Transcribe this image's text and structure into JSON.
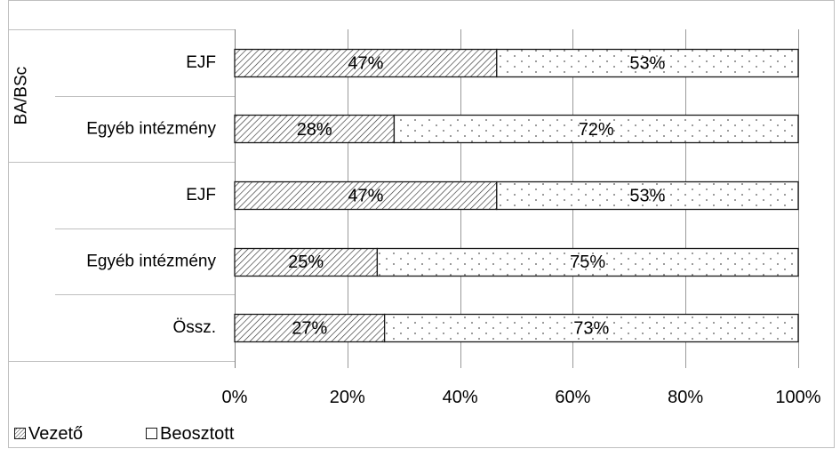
{
  "chart_data": {
    "type": "bar",
    "orientation": "horizontal",
    "stacked": true,
    "percent_scale": true,
    "title": "",
    "xlabel": "",
    "ylabel": "",
    "xlim": [
      0,
      100
    ],
    "x_ticks": [
      "0%",
      "20%",
      "40%",
      "60%",
      "80%",
      "100%"
    ],
    "grid": true,
    "legend_position": "bottom-left",
    "groups": [
      {
        "label": "BA/BSc",
        "categories": [
          "EJF",
          "Egyéb intézmény"
        ]
      },
      {
        "label": "",
        "categories": [
          "EJF",
          "Egyéb intézmény",
          "Össz."
        ]
      }
    ],
    "categories": [
      "EJF",
      "Egyéb intézmény",
      "EJF",
      "Egyéb intézmény",
      "Össz."
    ],
    "series": [
      {
        "name": "Vezető",
        "pattern": "diagonal-hatch",
        "values": [
          46.5,
          28.3,
          46.5,
          25.3,
          26.6
        ],
        "labels": [
          "47%",
          "28%",
          "47%",
          "25%",
          "27%"
        ]
      },
      {
        "name": "Beosztott",
        "pattern": "dots",
        "values": [
          53.5,
          71.7,
          53.5,
          74.7,
          73.4
        ],
        "labels": [
          "53%",
          "72%",
          "53%",
          "75%",
          "73%"
        ]
      }
    ]
  }
}
